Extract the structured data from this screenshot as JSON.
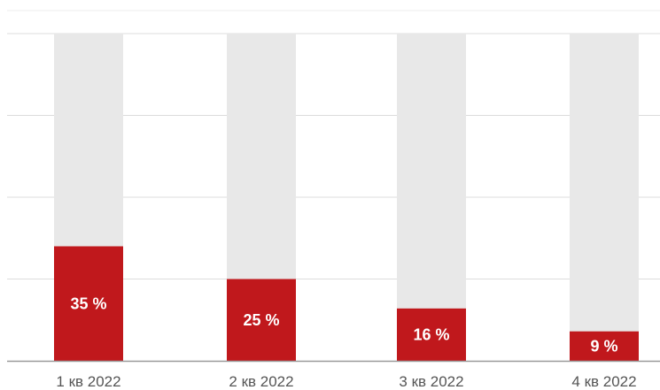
{
  "chart_data": {
    "type": "bar",
    "categories": [
      "1 кв 2022",
      "2 кв 2022",
      "3 кв 2022",
      "4 кв 2022"
    ],
    "values": [
      35,
      25,
      16,
      9
    ],
    "data_labels": [
      "35 %",
      "25 %",
      "16 %",
      "9 %"
    ],
    "ylim": [
      0,
      100
    ],
    "unit": "%",
    "grid": true,
    "colors": {
      "bar": "#c0181c",
      "track": "#e8e8e8",
      "grid": "#dcdcdc",
      "axis": "#9a9a9a",
      "data_label": "#ffffff"
    }
  }
}
